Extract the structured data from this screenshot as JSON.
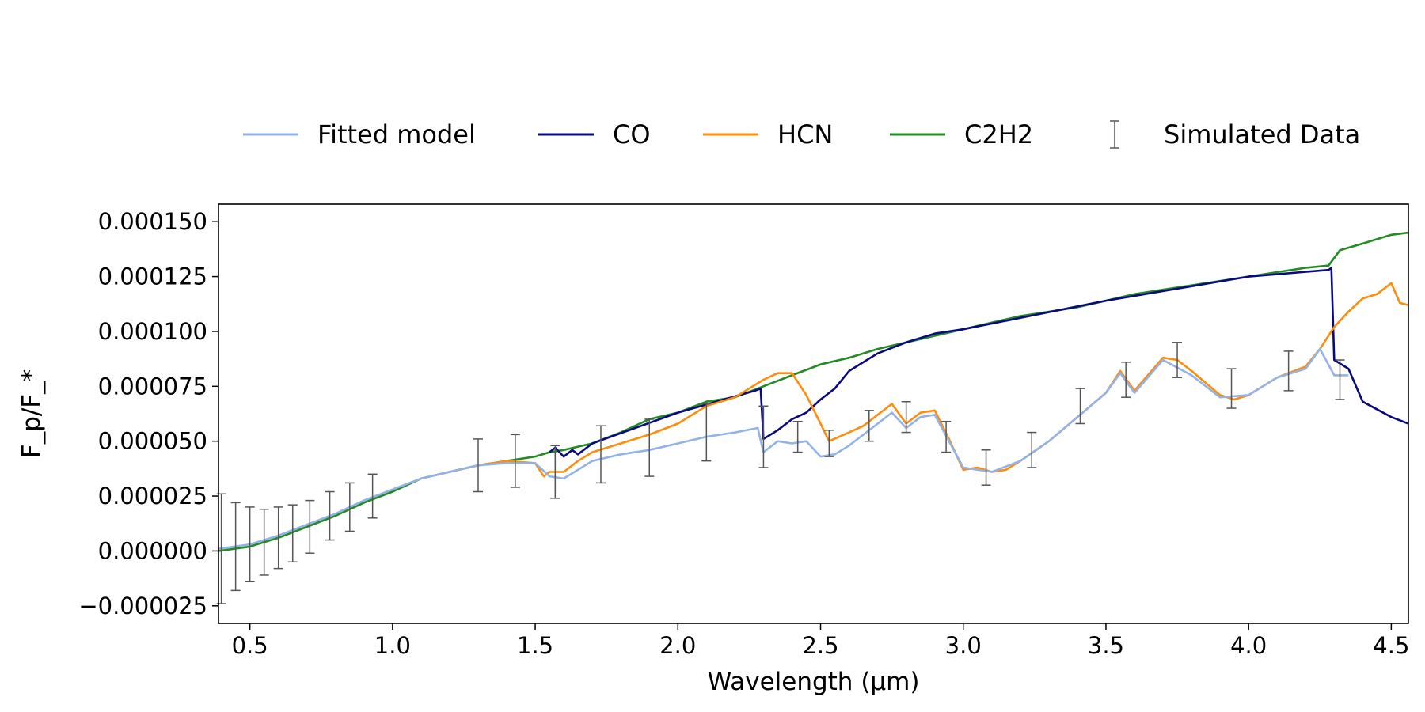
{
  "chart_data": {
    "type": "line",
    "title": "",
    "xlabel": "Wavelength (μm)",
    "ylabel": "F_p/F_*",
    "xlim": [
      0.39,
      4.56
    ],
    "ylim": [
      -3.3e-05,
      0.000158
    ],
    "grid": false,
    "legend_position": "top-center",
    "x_ticks": [
      0.5,
      1.0,
      1.5,
      2.0,
      2.5,
      3.0,
      3.5,
      4.0,
      4.5
    ],
    "x_tick_labels": [
      "0.5",
      "1.0",
      "1.5",
      "2.0",
      "2.5",
      "3.0",
      "3.5",
      "4.0",
      "4.5"
    ],
    "y_ticks": [
      -2.5e-05,
      0.0,
      2.5e-05,
      5e-05,
      7.5e-05,
      0.0001,
      0.000125,
      0.00015
    ],
    "y_tick_labels": [
      "−0.000025",
      "0.000000",
      "0.000025",
      "0.000050",
      "0.000075",
      "0.000100",
      "0.000125",
      "0.000150"
    ],
    "legend": [
      {
        "label": "Fitted model",
        "color": "#92b2ea",
        "kind": "line"
      },
      {
        "label": "CO",
        "color": "#0a0a80",
        "kind": "line"
      },
      {
        "label": "HCN",
        "color": "#ff8c0a",
        "kind": "line"
      },
      {
        "label": "C2H2",
        "color": "#228b22",
        "kind": "line"
      },
      {
        "label": "Simulated Data",
        "color": "#555555",
        "kind": "errorbar"
      }
    ],
    "series": [
      {
        "name": "C2H2",
        "color": "#228b22",
        "x": [
          0.39,
          0.5,
          0.6,
          0.7,
          0.8,
          0.9,
          1.0,
          1.1,
          1.2,
          1.3,
          1.4,
          1.5,
          1.55,
          1.6,
          1.7,
          1.8,
          1.9,
          2.0,
          2.1,
          2.2,
          2.3,
          2.4,
          2.5,
          2.6,
          2.7,
          2.8,
          2.9,
          3.0,
          3.1,
          3.2,
          3.3,
          3.4,
          3.5,
          3.6,
          3.7,
          3.8,
          3.9,
          4.0,
          4.1,
          4.2,
          4.28,
          4.32,
          4.4,
          4.5,
          4.56
        ],
        "y": [
          0.0,
          2e-06,
          6e-06,
          1.1e-05,
          1.6e-05,
          2.2e-05,
          2.7e-05,
          3.3e-05,
          3.6e-05,
          3.9e-05,
          4.1e-05,
          4.3e-05,
          4.5e-05,
          4.6e-05,
          4.9e-05,
          5.4e-05,
          6e-05,
          6.3e-05,
          6.8e-05,
          7e-05,
          7.5e-05,
          8e-05,
          8.5e-05,
          8.8e-05,
          9.2e-05,
          9.5e-05,
          9.8e-05,
          0.000101,
          0.000104,
          0.000107,
          0.000109,
          0.000111,
          0.000114,
          0.000117,
          0.000119,
          0.000121,
          0.000123,
          0.000125,
          0.000127,
          0.000129,
          0.00013,
          0.000137,
          0.00014,
          0.000144,
          0.000145
        ]
      },
      {
        "name": "CO",
        "color": "#0a0a80",
        "x": [
          1.55,
          1.57,
          1.6,
          1.63,
          1.65,
          1.7,
          2.0,
          2.27,
          2.29,
          2.3,
          2.35,
          2.4,
          2.45,
          2.5,
          2.55,
          2.6,
          2.7,
          2.8,
          2.9,
          3.0,
          3.5,
          4.0,
          4.28,
          4.29,
          4.3,
          4.35,
          4.4,
          4.5,
          4.56
        ],
        "y": [
          4.5e-05,
          4.7e-05,
          4.3e-05,
          4.6e-05,
          4.4e-05,
          4.9e-05,
          6.3e-05,
          7.3e-05,
          7.4e-05,
          5.1e-05,
          5.5e-05,
          6e-05,
          6.3e-05,
          6.9e-05,
          7.4e-05,
          8.2e-05,
          9e-05,
          9.5e-05,
          9.9e-05,
          0.000101,
          0.000114,
          0.000125,
          0.000128,
          0.000129,
          8.7e-05,
          8.3e-05,
          6.8e-05,
          6.1e-05,
          5.8e-05
        ]
      },
      {
        "name": "HCN",
        "color": "#ff8c0a",
        "x": [
          1.1,
          1.2,
          1.3,
          1.4,
          1.5,
          1.53,
          1.55,
          1.6,
          1.65,
          1.7,
          1.8,
          1.9,
          2.0,
          2.1,
          2.2,
          2.3,
          2.35,
          2.4,
          2.45,
          2.5,
          2.53,
          2.6,
          2.65,
          2.7,
          2.75,
          2.8,
          2.85,
          2.9,
          2.95,
          3.0,
          3.05,
          3.1,
          3.15,
          3.2,
          3.3,
          3.4,
          3.5,
          3.55,
          3.6,
          3.7,
          3.75,
          3.8,
          3.9,
          3.95,
          4.0,
          4.1,
          4.2,
          4.25,
          4.3,
          4.35,
          4.4,
          4.45,
          4.5,
          4.53,
          4.56
        ],
        "y": [
          3.3e-05,
          3.6e-05,
          3.9e-05,
          4.1e-05,
          4e-05,
          3.4e-05,
          3.6e-05,
          3.6e-05,
          4.1e-05,
          4.5e-05,
          4.9e-05,
          5.3e-05,
          5.8e-05,
          6.6e-05,
          7e-05,
          7.8e-05,
          8.1e-05,
          8.1e-05,
          7.1e-05,
          5.8e-05,
          5e-05,
          5.4e-05,
          5.7e-05,
          6.2e-05,
          6.7e-05,
          5.8e-05,
          6.3e-05,
          6.4e-05,
          5.1e-05,
          3.7e-05,
          3.8e-05,
          3.6e-05,
          3.7e-05,
          4.1e-05,
          5e-05,
          6.1e-05,
          7.2e-05,
          8.2e-05,
          7.3e-05,
          8.8e-05,
          8.7e-05,
          8.2e-05,
          7.1e-05,
          6.9e-05,
          7.1e-05,
          7.9e-05,
          8.4e-05,
          9.2e-05,
          0.000102,
          0.000109,
          0.000115,
          0.000117,
          0.000122,
          0.000113,
          0.000112
        ]
      },
      {
        "name": "Fitted model",
        "color": "#92b2ea",
        "x": [
          0.39,
          0.5,
          0.6,
          0.7,
          0.8,
          0.9,
          1.0,
          1.1,
          1.2,
          1.3,
          1.4,
          1.5,
          1.55,
          1.6,
          1.65,
          1.7,
          1.8,
          1.9,
          2.0,
          2.1,
          2.2,
          2.28,
          2.3,
          2.35,
          2.4,
          2.45,
          2.5,
          2.55,
          2.6,
          2.65,
          2.7,
          2.75,
          2.8,
          2.85,
          2.9,
          2.95,
          3.0,
          3.1,
          3.2,
          3.3,
          3.4,
          3.5,
          3.55,
          3.6,
          3.7,
          3.8,
          3.9,
          4.0,
          4.1,
          4.2,
          4.25,
          4.3,
          4.35
        ],
        "y": [
          1e-06,
          3e-06,
          7e-06,
          1.2e-05,
          1.7e-05,
          2.3e-05,
          2.8e-05,
          3.3e-05,
          3.6e-05,
          3.9e-05,
          4e-05,
          4e-05,
          3.4e-05,
          3.3e-05,
          3.7e-05,
          4.1e-05,
          4.4e-05,
          4.6e-05,
          4.9e-05,
          5.2e-05,
          5.4e-05,
          5.6e-05,
          4.5e-05,
          5e-05,
          4.9e-05,
          5e-05,
          4.3e-05,
          4.4e-05,
          4.8e-05,
          5.3e-05,
          5.8e-05,
          6.3e-05,
          5.6e-05,
          6.1e-05,
          6.2e-05,
          5e-05,
          3.8e-05,
          3.6e-05,
          4.1e-05,
          5e-05,
          6.1e-05,
          7.2e-05,
          8.1e-05,
          7.2e-05,
          8.7e-05,
          8e-05,
          7e-05,
          7.1e-05,
          7.9e-05,
          8.3e-05,
          9.2e-05,
          8e-05,
          8e-05
        ]
      }
    ],
    "error_points": {
      "name": "Simulated Data",
      "color": "#555555",
      "x": [
        0.4,
        0.45,
        0.5,
        0.55,
        0.6,
        0.65,
        0.71,
        0.78,
        0.85,
        0.93,
        1.3,
        1.43,
        1.57,
        1.73,
        1.9,
        2.1,
        2.3,
        2.42,
        2.53,
        2.67,
        2.8,
        2.94,
        3.08,
        3.24,
        3.41,
        3.57,
        3.75,
        3.94,
        4.14,
        4.32
      ],
      "y": [
        1e-06,
        2e-06,
        3e-06,
        4e-06,
        6e-06,
        8e-06,
        1.1e-05,
        1.6e-05,
        2e-05,
        2.5e-05,
        3.9e-05,
        4.1e-05,
        3.6e-05,
        4.4e-05,
        4.7e-05,
        5.4e-05,
        5.2e-05,
        5.2e-05,
        4.9e-05,
        5.7e-05,
        6.1e-05,
        5.2e-05,
        3.8e-05,
        4.6e-05,
        6.6e-05,
        7.8e-05,
        8.7e-05,
        7.4e-05,
        8.2e-05,
        7.8e-05
      ],
      "yerr": [
        2.5e-05,
        2e-05,
        1.7e-05,
        1.5e-05,
        1.4e-05,
        1.3e-05,
        1.2e-05,
        1.1e-05,
        1.1e-05,
        1e-05,
        1.2e-05,
        1.2e-05,
        1.2e-05,
        1.3e-05,
        1.3e-05,
        1.3e-05,
        1.4e-05,
        7e-06,
        6e-06,
        7e-06,
        7e-06,
        7e-06,
        8e-06,
        8e-06,
        8e-06,
        8e-06,
        8e-06,
        9e-06,
        9e-06,
        9e-06
      ]
    }
  }
}
